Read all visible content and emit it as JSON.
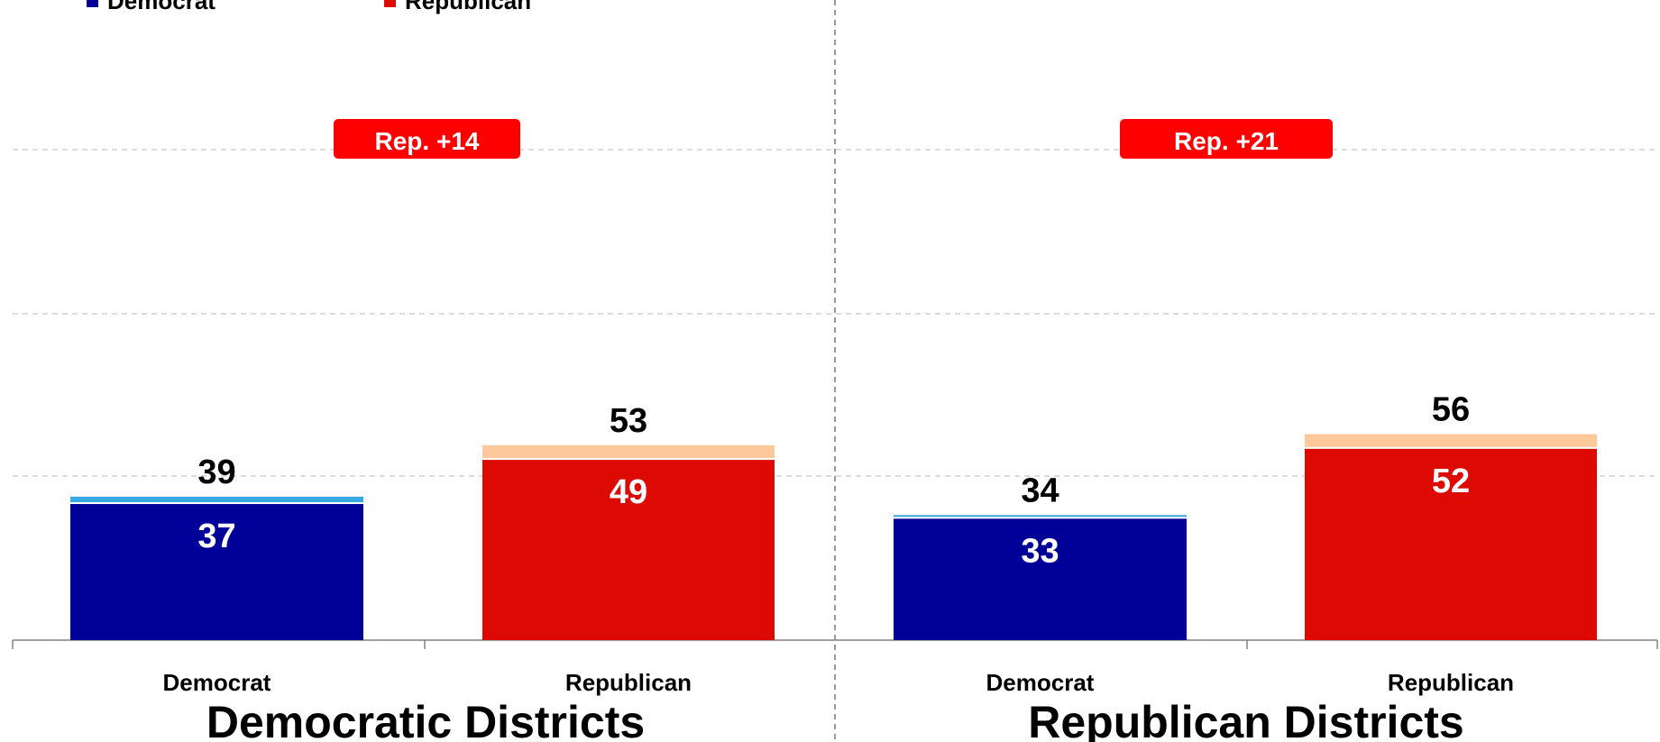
{
  "legend": [
    {
      "label": "Democrat",
      "color": "#000099"
    },
    {
      "label": "Republican",
      "color": "#dd0a04"
    }
  ],
  "colors": {
    "dem_base": "#000099",
    "dem_lean": "#3aa8e0",
    "rep_base": "#dd0a04",
    "rep_lean": "#fdc99a",
    "badge": "#ff0000"
  },
  "chart_data": [
    {
      "type": "bar",
      "title": "Democratic Districts",
      "categories": [
        "Democrat",
        "Republican"
      ],
      "series": [
        {
          "values": [
            37,
            49
          ]
        },
        {
          "values": [
            2,
            4
          ]
        }
      ],
      "totals": [
        39,
        53
      ],
      "annotation": "Rep. +14",
      "ylim": [
        0,
        100
      ],
      "grid": true
    },
    {
      "type": "bar",
      "title": "Republican Districts",
      "categories": [
        "Democrat",
        "Republican"
      ],
      "series": [
        {
          "values": [
            33,
            52
          ]
        },
        {
          "values": [
            1,
            4
          ]
        }
      ],
      "totals": [
        34,
        56
      ],
      "annotation": "Rep. +21",
      "ylim": [
        0,
        100
      ],
      "grid": true
    }
  ]
}
